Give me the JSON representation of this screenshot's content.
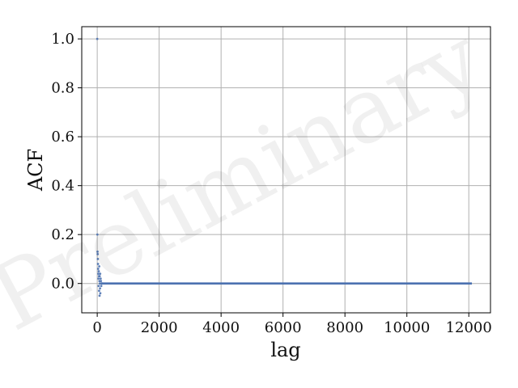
{
  "chart_data": {
    "type": "scatter",
    "title": "",
    "xlabel": "lag",
    "ylabel": "ACF",
    "xlim": [
      -500,
      12700
    ],
    "ylim": [
      -0.12,
      1.05
    ],
    "xticks": [
      0,
      2000,
      4000,
      6000,
      8000,
      10000,
      12000
    ],
    "yticks": [
      0.0,
      0.2,
      0.4,
      0.6,
      0.8,
      1.0
    ],
    "xtick_labels": [
      "0",
      "2000",
      "4000",
      "6000",
      "8000",
      "10000",
      "12000"
    ],
    "ytick_labels": [
      "0.0",
      "0.2",
      "0.4",
      "0.6",
      "0.8",
      "1.0"
    ],
    "grid": true,
    "series_color": "#4c72b0",
    "watermark": "Preliminary",
    "series": [
      {
        "x": [
          0,
          5,
          10,
          15,
          20,
          25,
          30,
          35,
          40,
          45,
          50,
          55,
          60,
          65,
          70,
          75,
          80,
          85,
          90,
          95,
          100,
          110,
          120,
          130,
          140,
          150
        ],
        "values": [
          1.0,
          0.2,
          0.13,
          0.12,
          0.1,
          0.08,
          0.06,
          0.04,
          0.02,
          -0.01,
          0.05,
          0.03,
          -0.03,
          0.07,
          0.01,
          -0.05,
          0.03,
          0.0,
          -0.02,
          0.04,
          -0.04,
          0.02,
          0.01,
          -0.01,
          0.0,
          0.0
        ],
        "flat_tail": {
          "x_from": 150,
          "x_to": 12100,
          "value": 0.0
        }
      }
    ]
  }
}
